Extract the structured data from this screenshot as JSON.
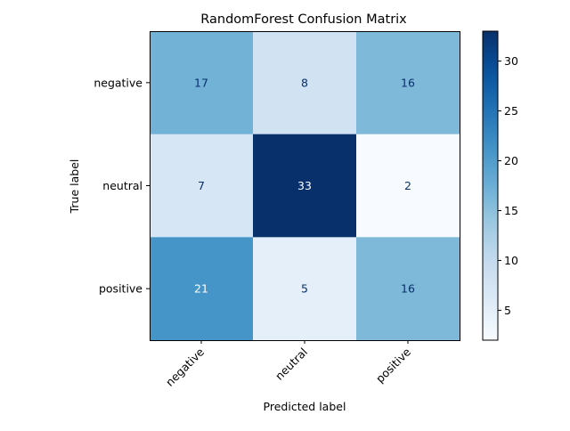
{
  "chart_data": {
    "type": "heatmap",
    "title": "RandomForest Confusion Matrix",
    "xlabel": "Predicted label",
    "ylabel": "True label",
    "x_categories": [
      "negative",
      "neutral",
      "positive"
    ],
    "y_categories": [
      "negative",
      "neutral",
      "positive"
    ],
    "values": [
      [
        17,
        8,
        16
      ],
      [
        7,
        33,
        2
      ],
      [
        21,
        5,
        16
      ]
    ],
    "colormap": "Blues",
    "colorbar": {
      "min": 2,
      "max": 33,
      "ticks": [
        5,
        10,
        15,
        20,
        25,
        30
      ]
    },
    "grid": false
  }
}
